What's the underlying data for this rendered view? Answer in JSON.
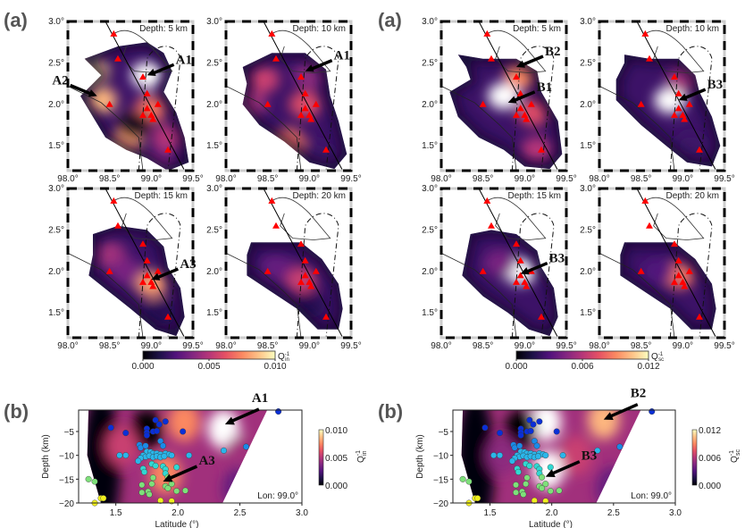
{
  "colors": {
    "cmap": [
      "#000004",
      "#1d1147",
      "#51127c",
      "#822681",
      "#b63679",
      "#e65164",
      "#fb8861",
      "#fec287",
      "#fcfdbf",
      "#ffffff"
    ],
    "triangle": "#ff0000",
    "arrow": "#000000"
  },
  "chart_data": [
    {
      "type": "heatmap",
      "panel_label": "(a)",
      "quantity": "Q_in^-1",
      "colorbar": {
        "label_main": "Q",
        "label_sup": "-1",
        "label_sub": "in",
        "ticks": [
          "0.000",
          "0.005",
          "0.010"
        ],
        "range": [
          0,
          0.01
        ]
      },
      "xticks": [
        "98.0°",
        "98.5°",
        "99.0°",
        "99.5°"
      ],
      "yticks": [
        "3.0°",
        "2.5°",
        "2.0°",
        "1.5°"
      ],
      "xlim": [
        98.0,
        99.5
      ],
      "ylim": [
        1.2,
        3.0
      ],
      "maps": [
        {
          "depth_label": "Depth: 5 km",
          "annotations": [
            {
              "text": "A1",
              "lon": 98.95,
              "lat": 2.35
            },
            {
              "text": "A2",
              "lon": 98.35,
              "lat": 2.1
            }
          ],
          "blobs": [
            [
              98.3,
              2.4,
              0.9
            ],
            [
              98.4,
              2.05,
              0.85
            ],
            [
              98.95,
              2.35,
              1.0
            ],
            [
              98.7,
              1.55,
              0.8
            ],
            [
              99.2,
              1.6,
              0.5
            ],
            [
              99.0,
              1.95,
              0.7
            ],
            [
              98.8,
              1.75,
              0.05
            ],
            [
              99.1,
              1.3,
              0.35
            ]
          ]
        },
        {
          "depth_label": "Depth: 10 km",
          "annotations": [
            {
              "text": "A1",
              "lon": 98.95,
              "lat": 2.4
            }
          ],
          "blobs": [
            [
              98.45,
              2.3,
              0.55
            ],
            [
              98.95,
              2.0,
              0.6
            ],
            [
              98.75,
              1.55,
              0.7
            ],
            [
              99.0,
              2.35,
              0.4
            ],
            [
              98.3,
              2.0,
              0.45
            ],
            [
              99.1,
              1.4,
              0.2
            ]
          ]
        },
        {
          "depth_label": "Depth: 15 km",
          "annotations": [
            {
              "text": "A3",
              "lon": 99.0,
              "lat": 1.9
            }
          ],
          "blobs": [
            [
              98.5,
              2.2,
              0.45
            ],
            [
              99.0,
              1.85,
              0.8
            ],
            [
              98.7,
              2.0,
              0.35
            ],
            [
              99.1,
              1.5,
              0.15
            ]
          ]
        },
        {
          "depth_label": "Depth: 20 km",
          "annotations": [],
          "blobs": [
            [
              98.9,
              1.9,
              0.55
            ],
            [
              98.6,
              2.05,
              0.3
            ],
            [
              99.0,
              1.6,
              0.15
            ]
          ]
        }
      ]
    },
    {
      "type": "heatmap",
      "panel_label": "(a)",
      "quantity": "Q_sc^-1",
      "colorbar": {
        "label_main": "Q",
        "label_sup": "-1",
        "label_sub": "sc",
        "ticks": [
          "0.000",
          "0.006",
          "0.012"
        ],
        "range": [
          0,
          0.012
        ]
      },
      "xticks": [
        "98.0°",
        "98.5°",
        "99.0°",
        "99.5°"
      ],
      "yticks": [
        "3.0°",
        "2.5°",
        "2.0°",
        "1.5°"
      ],
      "xlim": [
        98.0,
        99.5
      ],
      "ylim": [
        1.2,
        3.0
      ],
      "maps": [
        {
          "depth_label": "Depth: 5 km",
          "annotations": [
            {
              "text": "B2",
              "lon": 98.9,
              "lat": 2.45
            },
            {
              "text": "B1",
              "lon": 98.8,
              "lat": 2.02
            }
          ],
          "blobs": [
            [
              98.75,
              2.1,
              1.0
            ],
            [
              98.95,
              2.35,
              0.75
            ],
            [
              99.1,
              1.9,
              0.6
            ],
            [
              99.15,
              1.45,
              0.5
            ]
          ]
        },
        {
          "depth_label": "Depth: 10 km",
          "annotations": [
            {
              "text": "B3",
              "lon": 98.95,
              "lat": 2.05
            }
          ],
          "blobs": [
            [
              98.85,
              2.05,
              1.0
            ],
            [
              99.0,
              2.3,
              0.45
            ],
            [
              99.1,
              1.5,
              0.2
            ]
          ]
        },
        {
          "depth_label": "Depth: 15 km",
          "annotations": [
            {
              "text": "B3",
              "lon": 98.95,
              "lat": 1.97
            }
          ],
          "blobs": [
            [
              98.95,
              2.0,
              1.0
            ],
            [
              98.7,
              2.1,
              0.35
            ]
          ]
        },
        {
          "depth_label": "Depth: 20 km",
          "annotations": [],
          "blobs": [
            [
              98.95,
              1.95,
              0.7
            ],
            [
              98.7,
              2.0,
              0.25
            ]
          ]
        }
      ]
    },
    {
      "type": "scatter",
      "panel_label": "(b)",
      "quantity": "Q_in^-1",
      "xlabel": "Latitude (°)",
      "ylabel": "Depth (km)",
      "xticks": [
        "1.5",
        "2.0",
        "2.5",
        "3.0"
      ],
      "yticks": [
        "-5",
        "-10",
        "-15",
        "-20"
      ],
      "xlim": [
        1.2,
        3.0
      ],
      "ylim": [
        -20,
        -0.5
      ],
      "inset_label": "Lon: 99.0°",
      "colorbar": {
        "label_main": "Q",
        "label_sup": "-1",
        "label_sub": "in",
        "ticks": [
          "0.010",
          "0.005",
          "0.000"
        ],
        "range": [
          0,
          0.01
        ]
      },
      "annotations": [
        {
          "text": "A1",
          "lat": 2.38,
          "depth": -3.5
        },
        {
          "text": "A3",
          "lat": 1.88,
          "depth": -15.5
        }
      ],
      "blobs": [
        [
          2.37,
          -4.5,
          1.0
        ],
        [
          1.9,
          -14,
          0.75
        ],
        [
          2.05,
          -3,
          0.75
        ],
        [
          1.75,
          -4.5,
          0.0
        ],
        [
          1.55,
          -8,
          0.55
        ],
        [
          2.5,
          -10,
          0.45
        ]
      ]
    },
    {
      "type": "scatter",
      "panel_label": "(b)",
      "quantity": "Q_sc^-1",
      "xlabel": "Latitude (°)",
      "ylabel": "Depth (km)",
      "xticks": [
        "1.5",
        "2.0",
        "2.5",
        "3.0"
      ],
      "yticks": [
        "-5",
        "-10",
        "-15",
        "-20"
      ],
      "xlim": [
        1.2,
        3.0
      ],
      "ylim": [
        -20,
        -0.5
      ],
      "inset_label": "Lon: 99.0°",
      "colorbar": {
        "label_main": "Q",
        "label_sup": "-1",
        "label_sub": "sc",
        "ticks": [
          "0.012",
          "0.006",
          "0.000"
        ],
        "range": [
          0,
          0.012
        ]
      },
      "annotations": [
        {
          "text": "B2",
          "lat": 2.42,
          "depth": -2.5
        },
        {
          "text": "B3",
          "lat": 1.95,
          "depth": -14.5
        }
      ],
      "blobs": [
        [
          1.97,
          -13,
          1.0
        ],
        [
          1.95,
          -3,
          1.0
        ],
        [
          2.42,
          -2.5,
          0.85
        ],
        [
          1.75,
          -4.5,
          0.0
        ],
        [
          2.2,
          -10,
          0.55
        ],
        [
          1.6,
          -10,
          0.4
        ]
      ]
    }
  ],
  "events": [
    [
      1.46,
      -4.2
    ],
    [
      1.58,
      -5.3
    ],
    [
      1.75,
      -4.4
    ],
    [
      1.75,
      -5.2
    ],
    [
      1.75,
      -5.8
    ],
    [
      1.82,
      -2.6
    ],
    [
      1.85,
      -3.5
    ],
    [
      1.9,
      -2.9
    ],
    [
      1.8,
      -5.0
    ],
    [
      1.83,
      -4.9
    ],
    [
      2.04,
      -5.0
    ],
    [
      1.86,
      -7.0
    ],
    [
      1.88,
      -8.0
    ],
    [
      1.69,
      -7.8
    ],
    [
      1.7,
      -8.4
    ],
    [
      1.74,
      -8.0
    ],
    [
      1.53,
      -10
    ],
    [
      1.58,
      -10
    ],
    [
      1.75,
      -9.2
    ],
    [
      1.78,
      -9.3
    ],
    [
      1.8,
      -9.6
    ],
    [
      1.83,
      -9.6
    ],
    [
      1.86,
      -9.8
    ],
    [
      1.9,
      -9.6
    ],
    [
      1.93,
      -9.8
    ],
    [
      1.95,
      -10
    ],
    [
      1.72,
      -10
    ],
    [
      1.74,
      -10.3
    ],
    [
      1.77,
      -10.1
    ],
    [
      1.8,
      -10.4
    ],
    [
      1.83,
      -10.2
    ],
    [
      1.86,
      -10.4
    ],
    [
      1.89,
      -10.2
    ],
    [
      1.7,
      -10.6
    ],
    [
      1.68,
      -11.2
    ],
    [
      2.09,
      -10
    ],
    [
      2.37,
      -9
    ],
    [
      2.55,
      -8.2
    ],
    [
      1.72,
      -12.8
    ],
    [
      1.73,
      -13.5
    ],
    [
      1.79,
      -11.8
    ],
    [
      1.82,
      -12.2
    ],
    [
      1.88,
      -12.3
    ],
    [
      1.9,
      -12.9
    ],
    [
      1.99,
      -12.5
    ],
    [
      1.9,
      -13.8
    ],
    [
      1.92,
      -14.6
    ],
    [
      1.8,
      -14.7
    ],
    [
      1.71,
      -16.2
    ],
    [
      1.79,
      -16
    ],
    [
      1.9,
      -16.5
    ],
    [
      1.92,
      -16.9
    ],
    [
      1.95,
      -16
    ],
    [
      1.99,
      -17.5
    ],
    [
      2.06,
      -17.4
    ],
    [
      1.71,
      -17.8
    ],
    [
      1.76,
      -17.6
    ],
    [
      1.77,
      -18.2
    ],
    [
      1.28,
      -15
    ],
    [
      1.33,
      -15.5
    ],
    [
      1.38,
      -19
    ],
    [
      1.4,
      -19
    ],
    [
      1.33,
      -20
    ],
    [
      1.86,
      -19.5
    ],
    [
      1.95,
      -19.6
    ],
    [
      2.81,
      -0.8
    ]
  ],
  "volcanoes": [
    [
      98.55,
      2.85
    ],
    [
      98.6,
      2.55
    ],
    [
      98.9,
      2.33
    ],
    [
      98.95,
      2.13
    ],
    [
      98.5,
      2.0
    ],
    [
      99.08,
      2.0
    ],
    [
      98.95,
      1.95
    ],
    [
      98.9,
      1.87
    ],
    [
      99.0,
      1.87
    ],
    [
      99.02,
      1.82
    ],
    [
      99.2,
      1.45
    ]
  ]
}
